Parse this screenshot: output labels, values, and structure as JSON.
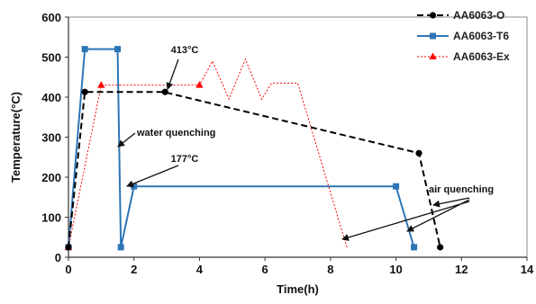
{
  "chart_data": {
    "type": "line",
    "xlabel": "Time(h)",
    "ylabel": "Temperature(°C)",
    "xlim": [
      0,
      14
    ],
    "ylim": [
      0,
      600
    ],
    "xticks": [
      0,
      2,
      4,
      6,
      8,
      10,
      12,
      14
    ],
    "yticks": [
      0,
      100,
      200,
      300,
      400,
      500,
      600
    ],
    "grid": false,
    "legend": "top-right",
    "series": [
      {
        "name": "AA6063-O",
        "color": "#000000",
        "style": "dashed",
        "marker": "circle",
        "x": [
          0,
          0.5,
          2.9,
          10.7,
          11.35
        ],
        "y": [
          25,
          413,
          413,
          260,
          25
        ]
      },
      {
        "name": "AA6063-T6",
        "color": "#2e75b6",
        "style": "solid",
        "marker": "square",
        "x": [
          0,
          0.5,
          1.5,
          1.6,
          2.0,
          10.0,
          10.55
        ],
        "y": [
          25,
          520,
          520,
          25,
          177,
          177,
          25
        ]
      },
      {
        "name": "AA6063-Ex",
        "color": "#ff0000",
        "style": "dotted",
        "marker": "triangle",
        "x": [
          0,
          1.0,
          4.0,
          4.4,
          4.9,
          5.4,
          5.9,
          6.2,
          7.0,
          8.5
        ],
        "y": [
          25,
          430,
          430,
          490,
          395,
          495,
          395,
          435,
          435,
          25
        ]
      }
    ],
    "annotations": [
      {
        "text": "413°C",
        "x": 3.0,
        "y": 413
      },
      {
        "text": "water quenching",
        "x": 1.5,
        "y": 400
      },
      {
        "text": "177°C",
        "x": 2.0,
        "y": 177
      },
      {
        "text": "air quenching",
        "x": 11.3,
        "y": 200
      }
    ]
  }
}
